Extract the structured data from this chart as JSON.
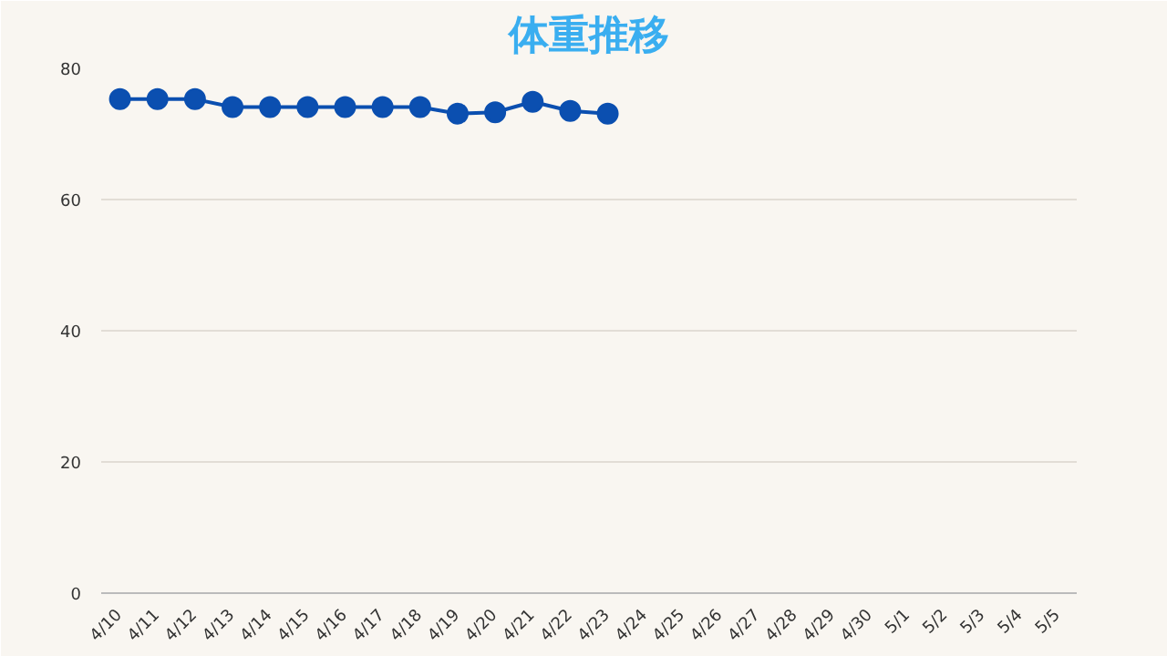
{
  "chart_data": {
    "type": "line",
    "title": "体重推移",
    "categories": [
      "4/10",
      "4/11",
      "4/12",
      "4/13",
      "4/14",
      "4/15",
      "4/16",
      "4/17",
      "4/18",
      "4/19",
      "4/20",
      "4/21",
      "4/22",
      "4/23",
      "4/24",
      "4/25",
      "4/26",
      "4/27",
      "4/28",
      "4/29",
      "4/30",
      "5/1",
      "5/2",
      "5/3",
      "5/4",
      "5/5"
    ],
    "series": [
      {
        "color": "#0b4fb0",
        "values": [
          75.3,
          75.3,
          75.3,
          74.1,
          74.1,
          74.1,
          74.1,
          74.1,
          74.1,
          73.1,
          73.3,
          74.9,
          73.5,
          73.1,
          null,
          null,
          null,
          null,
          null,
          null,
          null,
          null,
          null,
          null,
          null,
          null
        ]
      }
    ],
    "ylim": [
      0,
      80
    ],
    "yticks": [
      0,
      20,
      40,
      60,
      80
    ],
    "grid": "y",
    "marker": "circle",
    "line_style": "solid"
  }
}
